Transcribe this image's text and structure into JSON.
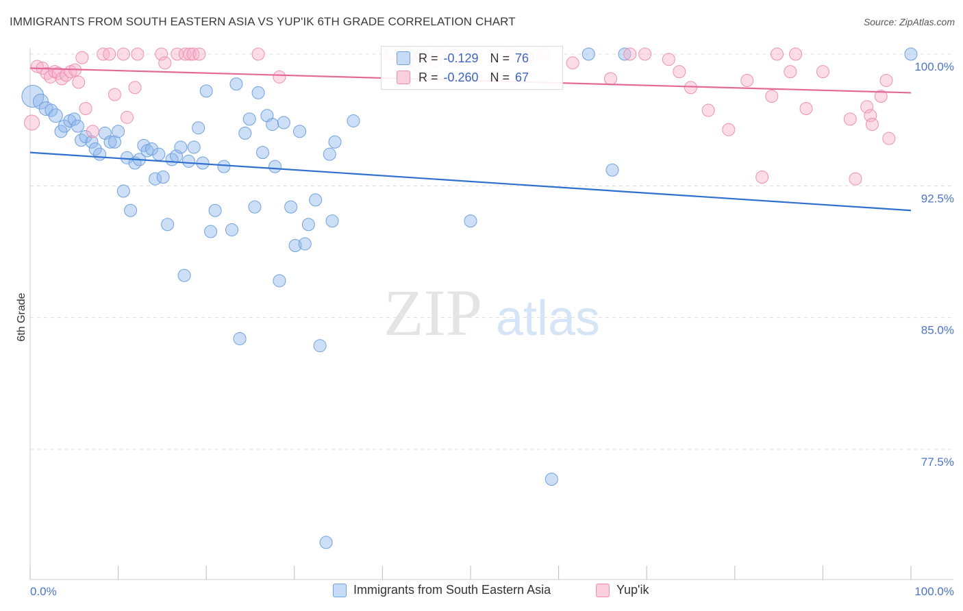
{
  "title": "IMMIGRANTS FROM SOUTH EASTERN ASIA VS YUP'IK 6TH GRADE CORRELATION CHART",
  "source": "Source: ZipAtlas.com",
  "watermark": {
    "zip": "ZIP",
    "atlas": "atlas"
  },
  "legend_top": {
    "rows": [
      {
        "r_label": "R =",
        "r_value": "-0.129",
        "n_label": "N =",
        "n_value": "76",
        "color": "#6fa0e0"
      },
      {
        "r_label": "R =",
        "r_value": "-0.260",
        "n_label": "N =",
        "n_value": "67",
        "color": "#ef8fb0"
      }
    ]
  },
  "legend_bottom": [
    {
      "label": "Immigrants from South Eastern Asia",
      "color": "#6fa0e0"
    },
    {
      "label": "Yup'ik",
      "color": "#ef8fb0"
    }
  ],
  "chart_data": {
    "type": "scatter",
    "title": "IMMIGRANTS FROM SOUTH EASTERN ASIA VS YUP'IK 6TH GRADE CORRELATION CHART",
    "xlabel": "",
    "ylabel": "6th Grade",
    "xlim": [
      0,
      100
    ],
    "ylim": [
      70.8,
      101.2
    ],
    "x_tick_labels": [
      {
        "value": 0,
        "label": "0.0%"
      },
      {
        "value": 100,
        "label": "100.0%"
      }
    ],
    "y_tick_labels": [
      {
        "value": 100.0,
        "label": "100.0%"
      },
      {
        "value": 92.5,
        "label": "92.5%"
      },
      {
        "value": 85.0,
        "label": "85.0%"
      },
      {
        "value": 77.5,
        "label": "77.5%"
      }
    ],
    "x_minor_ticks": [
      0,
      10,
      20,
      30,
      40,
      50,
      60,
      70,
      80,
      90,
      100
    ],
    "grid": true,
    "legend_placement": "bottom",
    "series": [
      {
        "name": "Immigrants from South Eastern Asia",
        "color": "#6fa0e0",
        "trend": {
          "x": [
            0,
            100
          ],
          "y": [
            94.4,
            91.1
          ]
        },
        "points": [
          [
            0.3,
            97.6,
            16
          ],
          [
            1.2,
            97.3,
            11
          ],
          [
            1.8,
            96.9,
            10
          ],
          [
            2.4,
            96.8,
            9
          ],
          [
            2.9,
            96.5,
            10
          ],
          [
            3.5,
            95.6,
            9
          ],
          [
            3.9,
            95.9,
            9
          ],
          [
            4.5,
            96.2,
            9
          ],
          [
            5.0,
            96.3,
            9
          ],
          [
            5.4,
            95.9,
            9
          ],
          [
            5.8,
            95.1,
            9
          ],
          [
            6.3,
            95.3,
            9
          ],
          [
            7.0,
            95.0,
            9
          ],
          [
            7.4,
            94.6,
            9
          ],
          [
            7.9,
            94.3,
            9
          ],
          [
            8.5,
            95.5,
            9
          ],
          [
            9.1,
            95.0,
            9
          ],
          [
            9.6,
            95.0,
            9
          ],
          [
            10.0,
            95.6,
            9
          ],
          [
            10.6,
            92.2,
            9
          ],
          [
            11.0,
            94.1,
            9
          ],
          [
            11.4,
            91.1,
            9
          ],
          [
            11.9,
            93.8,
            9
          ],
          [
            12.4,
            94.0,
            9
          ],
          [
            12.9,
            94.8,
            9
          ],
          [
            13.3,
            94.5,
            9
          ],
          [
            13.8,
            94.6,
            9
          ],
          [
            14.2,
            92.9,
            9
          ],
          [
            14.6,
            94.3,
            9
          ],
          [
            15.1,
            93.0,
            9
          ],
          [
            15.6,
            90.3,
            9
          ],
          [
            16.1,
            94.0,
            9
          ],
          [
            16.6,
            94.2,
            9
          ],
          [
            17.1,
            94.7,
            9
          ],
          [
            17.5,
            87.4,
            9
          ],
          [
            18.0,
            93.9,
            9
          ],
          [
            18.6,
            94.7,
            9
          ],
          [
            19.1,
            95.8,
            9
          ],
          [
            19.6,
            93.8,
            9
          ],
          [
            20.0,
            97.9,
            9
          ],
          [
            20.5,
            89.9,
            9
          ],
          [
            21.0,
            91.1,
            9
          ],
          [
            22.0,
            93.6,
            9
          ],
          [
            22.9,
            90.0,
            9
          ],
          [
            23.4,
            98.3,
            9
          ],
          [
            23.8,
            83.8,
            9
          ],
          [
            24.4,
            95.5,
            9
          ],
          [
            24.9,
            96.3,
            9
          ],
          [
            25.5,
            91.3,
            9
          ],
          [
            25.9,
            97.8,
            9
          ],
          [
            26.4,
            94.4,
            9
          ],
          [
            26.9,
            96.5,
            9
          ],
          [
            27.5,
            96.0,
            9
          ],
          [
            27.8,
            93.6,
            9
          ],
          [
            28.3,
            87.1,
            9
          ],
          [
            28.8,
            96.1,
            9
          ],
          [
            29.6,
            91.3,
            9
          ],
          [
            30.1,
            89.1,
            9
          ],
          [
            30.6,
            95.6,
            9
          ],
          [
            31.2,
            89.2,
            9
          ],
          [
            31.6,
            90.3,
            9
          ],
          [
            32.4,
            91.7,
            9
          ],
          [
            32.9,
            83.4,
            9
          ],
          [
            33.6,
            72.2,
            9
          ],
          [
            34.0,
            94.3,
            9
          ],
          [
            34.3,
            90.5,
            9
          ],
          [
            34.6,
            95.0,
            9
          ],
          [
            36.7,
            96.2,
            9
          ],
          [
            42.3,
            100.0,
            9
          ],
          [
            50.0,
            90.5,
            9
          ],
          [
            59.2,
            75.8,
            9
          ],
          [
            63.4,
            100.0,
            9
          ],
          [
            66.1,
            93.4,
            9
          ],
          [
            67.5,
            100.0,
            9
          ],
          [
            100.0,
            100.0,
            9
          ],
          [
            43.0,
            100.0,
            9
          ]
        ]
      },
      {
        "name": "Yup'ik",
        "color": "#ef8fb0",
        "trend": {
          "x": [
            0,
            100
          ],
          "y": [
            99.2,
            97.8
          ]
        },
        "points": [
          [
            0.2,
            96.1,
            11
          ],
          [
            0.8,
            99.3,
            9
          ],
          [
            1.4,
            99.2,
            9
          ],
          [
            1.9,
            98.9,
            9
          ],
          [
            2.3,
            98.7,
            9
          ],
          [
            2.8,
            99.0,
            9
          ],
          [
            3.2,
            98.9,
            9
          ],
          [
            3.6,
            98.6,
            9
          ],
          [
            4.1,
            98.8,
            9
          ],
          [
            4.6,
            99.0,
            9
          ],
          [
            5.1,
            99.1,
            9
          ],
          [
            5.5,
            98.4,
            9
          ],
          [
            5.9,
            99.8,
            9
          ],
          [
            6.3,
            96.9,
            9
          ],
          [
            7.1,
            95.6,
            9
          ],
          [
            8.3,
            100.0,
            9
          ],
          [
            9.0,
            100.0,
            9
          ],
          [
            9.6,
            97.7,
            9
          ],
          [
            10.6,
            100.0,
            9
          ],
          [
            11.0,
            96.4,
            9
          ],
          [
            11.9,
            98.1,
            9
          ],
          [
            12.2,
            100.0,
            9
          ],
          [
            14.9,
            100.0,
            9
          ],
          [
            15.3,
            99.5,
            9
          ],
          [
            16.7,
            100.0,
            9
          ],
          [
            17.6,
            100.0,
            9
          ],
          [
            18.1,
            100.0,
            9
          ],
          [
            18.5,
            100.0,
            9
          ],
          [
            19.2,
            100.0,
            9
          ],
          [
            25.9,
            100.0,
            9
          ],
          [
            28.3,
            98.7,
            9
          ],
          [
            41.0,
            100.0,
            9
          ],
          [
            43.9,
            99.4,
            9
          ],
          [
            44.5,
            100.0,
            9
          ],
          [
            46.0,
            99.6,
            9
          ],
          [
            46.3,
            100.0,
            9
          ],
          [
            47.9,
            100.0,
            9
          ],
          [
            48.3,
            99.5,
            9
          ],
          [
            54.7,
            100.0,
            9
          ],
          [
            55.1,
            99.9,
            9
          ],
          [
            56.5,
            99.8,
            9
          ],
          [
            58.3,
            100.0,
            9
          ],
          [
            61.6,
            99.5,
            9
          ],
          [
            65.9,
            98.6,
            9
          ],
          [
            68.1,
            100.0,
            9
          ],
          [
            69.8,
            100.0,
            9
          ],
          [
            72.5,
            99.7,
            9
          ],
          [
            73.7,
            99.0,
            9
          ],
          [
            75.0,
            98.1,
            9
          ],
          [
            77.0,
            96.8,
            9
          ],
          [
            79.3,
            95.7,
            9
          ],
          [
            81.4,
            98.5,
            9
          ],
          [
            83.1,
            93.0,
            9
          ],
          [
            84.2,
            97.6,
            9
          ],
          [
            84.8,
            100.0,
            9
          ],
          [
            86.3,
            99.0,
            9
          ],
          [
            86.9,
            100.0,
            9
          ],
          [
            88.1,
            96.9,
            9
          ],
          [
            90.0,
            99.0,
            9
          ],
          [
            93.1,
            96.3,
            9
          ],
          [
            93.7,
            92.9,
            9
          ],
          [
            95.0,
            97.0,
            9
          ],
          [
            95.4,
            96.5,
            9
          ],
          [
            95.6,
            96.0,
            9
          ],
          [
            96.6,
            97.6,
            9
          ],
          [
            97.2,
            98.5,
            9
          ],
          [
            97.5,
            95.2,
            9
          ]
        ]
      }
    ]
  }
}
